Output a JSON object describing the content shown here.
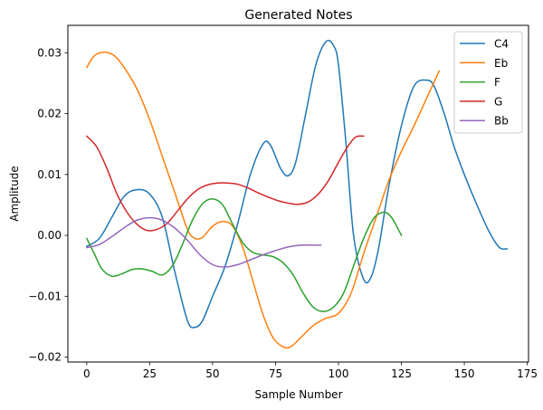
{
  "chart_data": {
    "type": "line",
    "title": "Generated Notes",
    "xlabel": "Sample Number",
    "ylabel": "Amplitude",
    "xlim": [
      -7.5,
      175.5
    ],
    "ylim": [
      -0.0208,
      0.0345
    ],
    "xticks": [
      0,
      25,
      50,
      75,
      100,
      125,
      150,
      175
    ],
    "yticks": [
      -0.02,
      -0.01,
      0.0,
      0.01,
      0.02,
      0.03
    ],
    "ytick_labels": [
      "−0.02",
      "−0.01",
      "0.00",
      "0.01",
      "0.02",
      "0.03"
    ],
    "grid": false,
    "legend_position": "top-right",
    "series": [
      {
        "name": "C4",
        "color": "#1f77b4",
        "points": [
          [
            0,
            -0.0018
          ],
          [
            5,
            -0.0005
          ],
          [
            10,
            0.003
          ],
          [
            15,
            0.0065
          ],
          [
            20,
            0.0075
          ],
          [
            25,
            0.0068
          ],
          [
            30,
            0.003
          ],
          [
            35,
            -0.006
          ],
          [
            40,
            -0.014
          ],
          [
            43,
            -0.0151
          ],
          [
            46,
            -0.014
          ],
          [
            50,
            -0.01
          ],
          [
            55,
            -0.005
          ],
          [
            60,
            0.002
          ],
          [
            65,
            0.01
          ],
          [
            70,
            0.015
          ],
          [
            73,
            0.0148
          ],
          [
            77,
            0.011
          ],
          [
            80,
            0.0098
          ],
          [
            83,
            0.012
          ],
          [
            87,
            0.02
          ],
          [
            91,
            0.028
          ],
          [
            95,
            0.0318
          ],
          [
            98,
            0.0312
          ],
          [
            100,
            0.028
          ],
          [
            103,
            0.015
          ],
          [
            106,
            0.0
          ],
          [
            110,
            -0.0072
          ],
          [
            113,
            -0.0068
          ],
          [
            116,
            -0.002
          ],
          [
            120,
            0.008
          ],
          [
            125,
            0.018
          ],
          [
            130,
            0.0245
          ],
          [
            135,
            0.0255
          ],
          [
            138,
            0.0245
          ],
          [
            142,
            0.02
          ],
          [
            146,
            0.0145
          ],
          [
            150,
            0.01
          ],
          [
            155,
            0.005
          ],
          [
            160,
            0.0005
          ],
          [
            164,
            -0.002
          ],
          [
            167,
            -0.0022
          ]
        ]
      },
      {
        "name": "Eb",
        "color": "#ff7f0e",
        "points": [
          [
            0,
            0.0276
          ],
          [
            3,
            0.0295
          ],
          [
            7,
            0.0301
          ],
          [
            11,
            0.0295
          ],
          [
            15,
            0.0275
          ],
          [
            20,
            0.024
          ],
          [
            25,
            0.019
          ],
          [
            30,
            0.013
          ],
          [
            35,
            0.007
          ],
          [
            40,
            0.001
          ],
          [
            43,
            -0.0005
          ],
          [
            46,
            -0.0003
          ],
          [
            50,
            0.0015
          ],
          [
            54,
            0.0023
          ],
          [
            58,
            0.0015
          ],
          [
            62,
            -0.002
          ],
          [
            66,
            -0.0075
          ],
          [
            70,
            -0.013
          ],
          [
            74,
            -0.0168
          ],
          [
            78,
            -0.0183
          ],
          [
            81,
            -0.0183
          ],
          [
            85,
            -0.0168
          ],
          [
            90,
            -0.0148
          ],
          [
            95,
            -0.0136
          ],
          [
            100,
            -0.0128
          ],
          [
            105,
            -0.0095
          ],
          [
            110,
            -0.003
          ],
          [
            115,
            0.003
          ],
          [
            120,
            0.009
          ],
          [
            125,
            0.0138
          ],
          [
            130,
            0.018
          ],
          [
            135,
            0.0225
          ],
          [
            140,
            0.027
          ]
        ]
      },
      {
        "name": "F",
        "color": "#2ca02c",
        "points": [
          [
            0,
            -0.0005
          ],
          [
            3,
            -0.003
          ],
          [
            6,
            -0.0055
          ],
          [
            10,
            -0.0067
          ],
          [
            14,
            -0.0063
          ],
          [
            18,
            -0.0056
          ],
          [
            22,
            -0.0055
          ],
          [
            26,
            -0.0059
          ],
          [
            30,
            -0.0065
          ],
          [
            34,
            -0.005
          ],
          [
            38,
            -0.0015
          ],
          [
            42,
            0.0025
          ],
          [
            46,
            0.0052
          ],
          [
            50,
            0.006
          ],
          [
            54,
            0.005
          ],
          [
            58,
            0.0018
          ],
          [
            62,
            -0.0012
          ],
          [
            66,
            -0.0028
          ],
          [
            70,
            -0.0032
          ],
          [
            74,
            -0.0035
          ],
          [
            78,
            -0.0045
          ],
          [
            82,
            -0.0065
          ],
          [
            86,
            -0.0095
          ],
          [
            90,
            -0.0118
          ],
          [
            94,
            -0.0125
          ],
          [
            98,
            -0.0118
          ],
          [
            102,
            -0.0095
          ],
          [
            106,
            -0.005
          ],
          [
            110,
            -0.0005
          ],
          [
            114,
            0.0028
          ],
          [
            118,
            0.0038
          ],
          [
            121,
            0.003
          ],
          [
            124,
            0.0008
          ],
          [
            125,
            0.0
          ]
        ]
      },
      {
        "name": "G",
        "color": "#d62728",
        "points": [
          [
            0,
            0.0163
          ],
          [
            4,
            0.0145
          ],
          [
            8,
            0.011
          ],
          [
            12,
            0.0068
          ],
          [
            16,
            0.0038
          ],
          [
            20,
            0.0018
          ],
          [
            24,
            0.0008
          ],
          [
            28,
            0.001
          ],
          [
            32,
            0.002
          ],
          [
            36,
            0.004
          ],
          [
            40,
            0.006
          ],
          [
            44,
            0.0075
          ],
          [
            48,
            0.0083
          ],
          [
            52,
            0.0086
          ],
          [
            56,
            0.0086
          ],
          [
            60,
            0.0084
          ],
          [
            64,
            0.0078
          ],
          [
            68,
            0.007
          ],
          [
            72,
            0.0063
          ],
          [
            76,
            0.0057
          ],
          [
            80,
            0.0053
          ],
          [
            84,
            0.0051
          ],
          [
            88,
            0.0055
          ],
          [
            92,
            0.0068
          ],
          [
            96,
            0.009
          ],
          [
            100,
            0.012
          ],
          [
            104,
            0.0148
          ],
          [
            107,
            0.0162
          ],
          [
            110,
            0.0163
          ]
        ]
      },
      {
        "name": "Bb",
        "color": "#9467bd",
        "points": [
          [
            0,
            -0.002
          ],
          [
            5,
            -0.0015
          ],
          [
            10,
            -0.0002
          ],
          [
            15,
            0.0013
          ],
          [
            20,
            0.0025
          ],
          [
            25,
            0.0029
          ],
          [
            30,
            0.0025
          ],
          [
            35,
            0.0012
          ],
          [
            40,
            -0.0008
          ],
          [
            45,
            -0.0032
          ],
          [
            50,
            -0.0048
          ],
          [
            55,
            -0.0052
          ],
          [
            60,
            -0.0048
          ],
          [
            65,
            -0.004
          ],
          [
            70,
            -0.0032
          ],
          [
            75,
            -0.0025
          ],
          [
            80,
            -0.0019
          ],
          [
            85,
            -0.0016
          ],
          [
            90,
            -0.0016
          ],
          [
            93,
            -0.0016
          ]
        ]
      }
    ]
  }
}
